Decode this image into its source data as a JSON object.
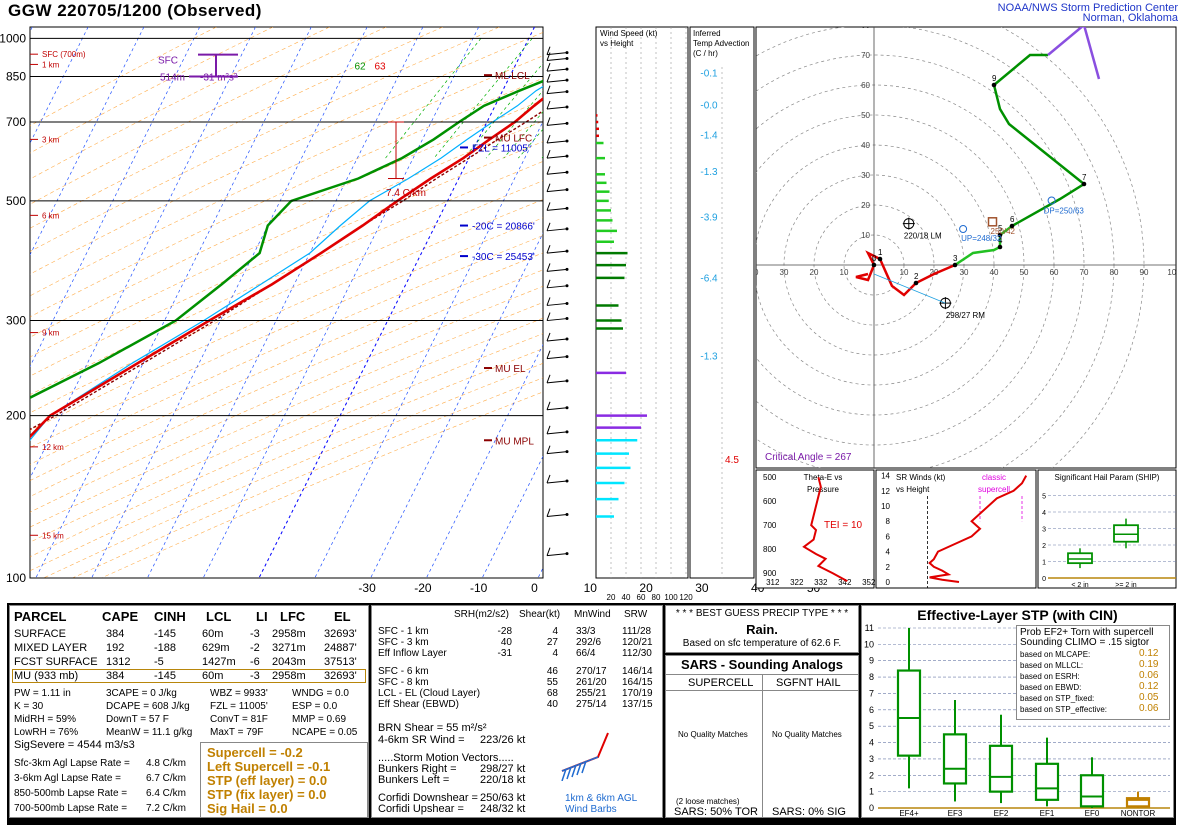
{
  "header": {
    "title": "GGW  220705/1200  (Observed)",
    "spc_line1": "NOAA/NWS Storm Prediction Center",
    "spc_line2": "Norman, Oklahoma"
  },
  "colors": {
    "temp": "#e00000",
    "dewpoint": "#009000",
    "wetbulb": "#00b0ff",
    "virtual": "#b00000",
    "parcel": "#8b0000",
    "isotherm": "#0000ff",
    "dry_adiabat": "#ff8c00",
    "mixing_ratio": "#00b000",
    "hodo_0_3": "#e00000",
    "hodo_3_6": "#22c022",
    "hodo_6_9": "#009000",
    "hodo_9_12": "#8a4fe0"
  },
  "skewt": {
    "pressure_labels": [
      "100",
      "200",
      "300",
      "500",
      "700",
      "850",
      "1000"
    ],
    "height_labels": [
      "15 km",
      "12 km",
      "9 km",
      "6 km",
      "3 km",
      "1 km",
      "SFC (700m)"
    ],
    "temp_ticks": [
      "-30",
      "-20",
      "-10",
      "0",
      "10",
      "20",
      "30",
      "40",
      "50"
    ],
    "annotations": {
      "mu_mpl": "MU MPL",
      "mu_el": "MU EL",
      "mu_lfc": "MU LFC",
      "ml_lcl": "ML LCL",
      "m30c": "-30C = 25453'",
      "m20c": "-20C = 20866'",
      "fzl": "FZL = 11005'",
      "lapse": "7.4 C/km",
      "srh_depth": "514m",
      "srh_val": "-31 m²s²",
      "sfc": "SFC",
      "td_sfc": "62",
      "t_sfc": "63"
    }
  },
  "chart_data": [
    {
      "type": "line",
      "title": "GGW  220705/1200  (Observed)",
      "xlabel": "",
      "ylabel": "",
      "x_axis_range": [
        -35,
        55
      ],
      "y_axis_range_mb": [
        1050,
        100
      ],
      "series": [
        {
          "p": [
            933,
            925,
            900,
            850,
            800,
            750,
            700,
            650,
            600,
            550,
            500,
            450,
            400,
            350,
            300,
            250,
            200,
            180,
            160,
            150,
            130,
            120,
            100
          ],
          "values": [
            17,
            16.5,
            14,
            11,
            9,
            7,
            5,
            2,
            -1,
            -5,
            -9,
            -13,
            -18,
            -24,
            -32,
            -41,
            -52,
            -54,
            -55,
            -56,
            -57,
            -60,
            -60
          ]
        },
        {
          "p": [
            933,
            925,
            900,
            850,
            800,
            750,
            700,
            650,
            600,
            550,
            500,
            450,
            400,
            350,
            300,
            250,
            200,
            180,
            160,
            150,
            130,
            120,
            100
          ],
          "values": [
            16.5,
            14,
            12,
            8,
            3,
            -2,
            -5,
            -8,
            -12,
            -18,
            -28,
            -30,
            -29,
            -33,
            -38,
            -48,
            -62,
            -64,
            -65,
            -66,
            -68,
            -70,
            -72
          ]
        },
        {
          "p": [
            933,
            900,
            850,
            800,
            750,
            700,
            650,
            600,
            550,
            500,
            450,
            400,
            350,
            300,
            250,
            200,
            160,
            130,
            100
          ],
          "values": [
            16.8,
            13,
            9,
            6,
            4,
            1,
            -2,
            -5,
            -9,
            -14,
            -17,
            -20,
            -26,
            -33,
            -42,
            -52,
            -55,
            -58,
            -60
          ]
        },
        {
          "p": [
            933,
            900,
            850,
            800,
            750,
            700,
            650,
            600,
            550,
            500,
            450,
            400,
            350,
            300,
            250,
            200,
            180,
            160,
            130,
            100
          ],
          "values": [
            17,
            17,
            15,
            13,
            10,
            7,
            3.5,
            0,
            -4,
            -8,
            -13,
            -18,
            -24,
            -31,
            -40,
            -51,
            -57,
            -64,
            -75,
            -92
          ]
        }
      ]
    },
    {
      "type": "scatter",
      "title": "",
      "xlabel": "",
      "ylabel": "",
      "axis_range": [
        -40,
        100
      ],
      "rings": [
        10,
        20,
        30,
        40,
        50,
        60,
        70,
        80,
        90
      ],
      "u": [
        -2,
        -6,
        -2,
        0,
        -2,
        2,
        6,
        10,
        14,
        20,
        27,
        33,
        40,
        42,
        42,
        46,
        62,
        70,
        45,
        42,
        40,
        52,
        58,
        70,
        75
      ],
      "v": [
        -3,
        -4,
        -5,
        0,
        4,
        2,
        -7,
        -10,
        -6,
        -3,
        0,
        4,
        5,
        6,
        10,
        13,
        22,
        27,
        47,
        52,
        60,
        70,
        70,
        80,
        62
      ],
      "segment_colors": [
        "hodo_0_3",
        "hodo_3_6",
        "hodo_6_9",
        "hodo_9_12"
      ],
      "markers": [
        {
          "label": "220/18 LM",
          "u": 11.6,
          "v": 13.8
        },
        {
          "label": "298/27 RM",
          "u": 23.8,
          "v": -12.7
        },
        {
          "label": "UP=248/32",
          "u": 29.7,
          "v": 12
        },
        {
          "label": "DP=250/63",
          "u": 59.2,
          "v": 21.5
        },
        {
          "label": "250/42",
          "u": 39.5,
          "v": 14.4
        }
      ],
      "critical_angle": "Critical Angle = 267"
    },
    {
      "type": "bar",
      "title": "Wind Speed (kt) vs Height",
      "xlabel": "",
      "ylabel": "",
      "ticks": [
        "20",
        "40",
        "60",
        "80",
        "100",
        "120"
      ],
      "p": [
        130,
        140,
        150,
        160,
        170,
        180,
        190,
        200,
        240,
        290,
        300,
        320,
        360,
        380,
        400,
        420,
        440,
        460,
        480,
        500,
        520,
        540,
        560,
        600,
        640,
        660,
        680,
        700,
        720
      ],
      "values": [
        24,
        30,
        38,
        46,
        44,
        55,
        60,
        68,
        40,
        36,
        34,
        30,
        38,
        40,
        42,
        24,
        28,
        22,
        20,
        17,
        18,
        14,
        12,
        12,
        10,
        4,
        4,
        3,
        2
      ]
    },
    {
      "type": "bar",
      "title": "Inferred Temp Advection (C / hr)",
      "xlabel": "",
      "ylabel": "",
      "x_axis_range": [
        -6,
        6
      ],
      "segments": [
        {
          "top_p": 120,
          "bot_p": 230,
          "value": 4.5
        },
        {
          "top_p": 230,
          "bot_p": 290,
          "value": -1.3
        },
        {
          "top_p": 310,
          "bot_p": 420,
          "value": -6.4
        },
        {
          "top_p": 420,
          "bot_p": 520,
          "value": -3.9
        },
        {
          "top_p": 520,
          "bot_p": 620,
          "value": -1.3
        },
        {
          "top_p": 620,
          "bot_p": 710,
          "value": -1.4
        },
        {
          "top_p": 710,
          "bot_p": 800,
          "value": -0.0
        },
        {
          "top_p": 800,
          "bot_p": 933,
          "value": -0.1
        }
      ]
    },
    {
      "type": "line",
      "title": "Theta-E vs Pressure",
      "xlabel": "",
      "ylabel": "",
      "ticks_x": [
        "312",
        "322",
        "332",
        "342",
        "352"
      ],
      "ticks_p": [
        "500",
        "600",
        "700",
        "800",
        "900"
      ],
      "annotation": "TEI = 10",
      "p": [
        500,
        540,
        580,
        620,
        660,
        700,
        720,
        760,
        790,
        820,
        840,
        870,
        900,
        933
      ],
      "values": [
        331,
        332,
        331,
        330,
        329,
        328,
        330,
        329,
        325,
        330,
        334,
        331,
        337,
        343
      ]
    },
    {
      "type": "line",
      "title": "SR Winds (kt) vs Height",
      "xlabel": "",
      "ylabel": "",
      "ticks_y": [
        "0",
        "2",
        "4",
        "6",
        "8",
        "10",
        "12",
        "14"
      ],
      "annotation": "classic supercell",
      "height_km": [
        0,
        0.3,
        0.6,
        1,
        1.5,
        2,
        2.5,
        3,
        4,
        5,
        6,
        7,
        8,
        9,
        10,
        11,
        12,
        13,
        14
      ],
      "values": [
        30,
        22,
        16,
        25,
        22,
        18,
        16,
        18,
        20,
        28,
        36,
        40,
        36,
        40,
        44,
        48,
        56,
        60,
        62
      ]
    },
    {
      "type": "box",
      "title": "Significant Hail Param (SHIP)",
      "xlabel": "",
      "ylabel": "",
      "categories": [
        "< 2 in",
        ">= 2 in"
      ],
      "y_range": [
        0,
        5
      ],
      "boxes": [
        {
          "lo": 0.6,
          "q1": 0.9,
          "med": 1.15,
          "q3": 1.5,
          "hi": 1.8
        },
        {
          "lo": 1.8,
          "q1": 2.2,
          "med": 2.65,
          "q3": 3.2,
          "hi": 3.6
        }
      ]
    },
    {
      "type": "box",
      "title": "Effective-Layer STP (with CIN)",
      "xlabel": "",
      "ylabel": "",
      "categories": [
        "EF4+",
        "EF3",
        "EF2",
        "EF1",
        "EF0",
        "NONTOR"
      ],
      "y_range": [
        0,
        11
      ],
      "boxes": [
        {
          "lo": 1.2,
          "q1": 3.2,
          "med": 5.5,
          "q3": 8.4,
          "hi": 11.0
        },
        {
          "lo": 0.4,
          "q1": 1.5,
          "med": 2.4,
          "q3": 4.5,
          "hi": 6.6
        },
        {
          "lo": 0.3,
          "q1": 1.0,
          "med": 1.9,
          "q3": 3.8,
          "hi": 5.7
        },
        {
          "lo": 0.1,
          "q1": 0.5,
          "med": 1.2,
          "q3": 2.7,
          "hi": 4.3
        },
        {
          "lo": 0.0,
          "q1": 0.1,
          "med": 0.7,
          "q3": 2.0,
          "hi": 3.1
        },
        {
          "lo": 0.0,
          "q1": 0.1,
          "med": 0.5,
          "q3": 0.6,
          "hi": 1.0
        }
      ]
    }
  ],
  "ship_panel": {
    "title": "Significant Hail Param (SHIP)"
  },
  "thetae_panel": {
    "title1": "Theta-E vs",
    "title2": "Pressure",
    "tei": "TEI = 10"
  },
  "srw_panel": {
    "title1": "SR Winds (kt)",
    "title2": "vs Height",
    "classic1": "classic",
    "classic2": "supercell"
  },
  "windspeed_panel": {
    "title1": "Wind Speed (kt)",
    "title2": "vs Height",
    "ticks": [
      "20",
      "40",
      "60",
      "80",
      "100",
      "120"
    ]
  },
  "advection_panel": {
    "title1": "Inferred",
    "title2": "Temp Advection",
    "title3": "(C / hr)"
  },
  "hodograph": {
    "ring_labels": [
      "10",
      "20",
      "30",
      "40",
      "50",
      "60",
      "70",
      "80",
      "90",
      "100"
    ],
    "height_markers": [
      "0",
      "1",
      "2",
      "3",
      "4",
      "5",
      "6",
      "7",
      "9"
    ],
    "lm": "220/18 LM",
    "rm": "298/27 RM",
    "up": "UP=248/32",
    "dp": "DP=250/63",
    "mean": "250/42",
    "critical_angle": "Critical Angle = 267"
  },
  "parcel_table": {
    "headers": [
      "PARCEL",
      "CAPE",
      "CINH",
      "LCL",
      "LI",
      "LFC",
      "EL"
    ],
    "rows": [
      [
        "SURFACE",
        "384",
        "-145",
        "60m",
        "-3",
        "2958m",
        "32693'"
      ],
      [
        "MIXED LAYER",
        "192",
        "-188",
        "629m",
        "-2",
        "3271m",
        "24887'"
      ],
      [
        "FCST SURFACE",
        "1312",
        "-5",
        "1427m",
        "-6",
        "2043m",
        "37513'"
      ],
      [
        "MU (933 mb)",
        "384",
        "-145",
        "60m",
        "-3",
        "2958m",
        "32693'"
      ]
    ]
  },
  "thermo_params": [
    [
      "PW = 1.11 in",
      "3CAPE = 0 J/kg",
      "WBZ = 9933'",
      "WNDG = 0.0"
    ],
    [
      "K = 30",
      "DCAPE = 608 J/kg",
      "FZL = 11005'",
      "ESP = 0.0"
    ],
    [
      "MidRH = 59%",
      "DownT = 57 F",
      "ConvT = 81F",
      "MMP = 0.69"
    ],
    [
      "LowRH = 76%",
      "MeanW = 11.1 g/kg",
      "MaxT = 79F",
      "NCAPE = 0.05"
    ]
  ],
  "sigsevere": "SigSevere = 4544 m3/s3",
  "lapse_rates": [
    [
      "Sfc-3km Agl Lapse Rate =",
      "4.8 C/km"
    ],
    [
      "3-6km Agl Lapse Rate =",
      "6.7 C/km"
    ],
    [
      "850-500mb Lapse Rate =",
      "6.4 C/km"
    ],
    [
      "700-500mb Lapse Rate =",
      "7.2 C/km"
    ]
  ],
  "composite": [
    "Supercell = -0.2",
    "Left Supercell = -0.1",
    "STP (eff layer) = 0.0",
    "STP (fix layer) = 0.0",
    "Sig Hail = 0.0"
  ],
  "kinematic": {
    "headers": [
      "SRH(m2/s2)",
      "Shear(kt)",
      "MnWind",
      "SRW"
    ],
    "rows": [
      [
        "SFC - 1 km",
        "-28",
        "4",
        "33/3",
        "111/28"
      ],
      [
        "SFC - 3 km",
        "40",
        "27",
        "292/6",
        "120/21"
      ],
      [
        "Eff Inflow Layer",
        "-31",
        "4",
        "66/4",
        "112/30"
      ],
      [
        "SFC - 6 km",
        "",
        "46",
        "270/17",
        "146/14"
      ],
      [
        "SFC - 8 km",
        "",
        "55",
        "261/20",
        "164/15"
      ],
      [
        "LCL - EL (Cloud Layer)",
        "",
        "68",
        "255/21",
        "170/19"
      ],
      [
        "Eff Shear (EBWD)",
        "",
        "40",
        "275/14",
        "137/15"
      ]
    ],
    "brn": "BRN Shear =  55 m²/s²",
    "sr_wind": "4-6km SR Wind =",
    "sr_wind_val": "223/26 kt",
    "storm_motion": ".....Storm Motion Vectors.....",
    "bunkers_right": "Bunkers Right =",
    "bunkers_right_val": "298/27 kt",
    "bunkers_left": "Bunkers Left =",
    "bunkers_left_val": "220/18 kt",
    "corfidi_down": "Corfidi Downshear =",
    "corfidi_down_val": "250/63 kt",
    "corfidi_up": "Corfidi Upshear =",
    "corfidi_up_val": "248/32 kt",
    "barbs1": "1km & 6km AGL",
    "barbs2": "Wind Barbs"
  },
  "precip": {
    "title": "* * * BEST GUESS PRECIP TYPE * * *",
    "value": "Rain.",
    "based": "Based on sfc temperature of 62.6 F."
  },
  "sars": {
    "title": "SARS - Sounding Analogs",
    "supercell": "SUPERCELL",
    "sgfnt": "SGFNT HAIL",
    "nq1": "No Quality Matches",
    "nq2": "No Quality Matches",
    "loose": "(2 loose matches)",
    "tor": "SARS:  50% TOR",
    "sig": "SARS:  0% SIG"
  },
  "stp": {
    "title": "Effective-Layer STP (with CIN)",
    "prob1": "Prob EF2+ Torn with supercell",
    "prob2": "Sounding CLIMO = .15 sigtor",
    "rows": [
      [
        "based on MLCAPE:",
        "0.12"
      ],
      [
        "based on MLLCL:",
        "0.19"
      ],
      [
        "based on ESRH:",
        "0.06"
      ],
      [
        "based on EBWD:",
        "0.12"
      ],
      [
        "based on STP_fixed:",
        "0.05"
      ],
      [
        "based on STP_effective:",
        "0.06"
      ]
    ],
    "y_ticks": [
      "0",
      "1",
      "2",
      "3",
      "4",
      "5",
      "6",
      "7",
      "8",
      "9",
      "10",
      "11"
    ],
    "categories": [
      "EF4+",
      "EF3",
      "EF2",
      "EF1",
      "EF0",
      "NONTOR"
    ]
  }
}
